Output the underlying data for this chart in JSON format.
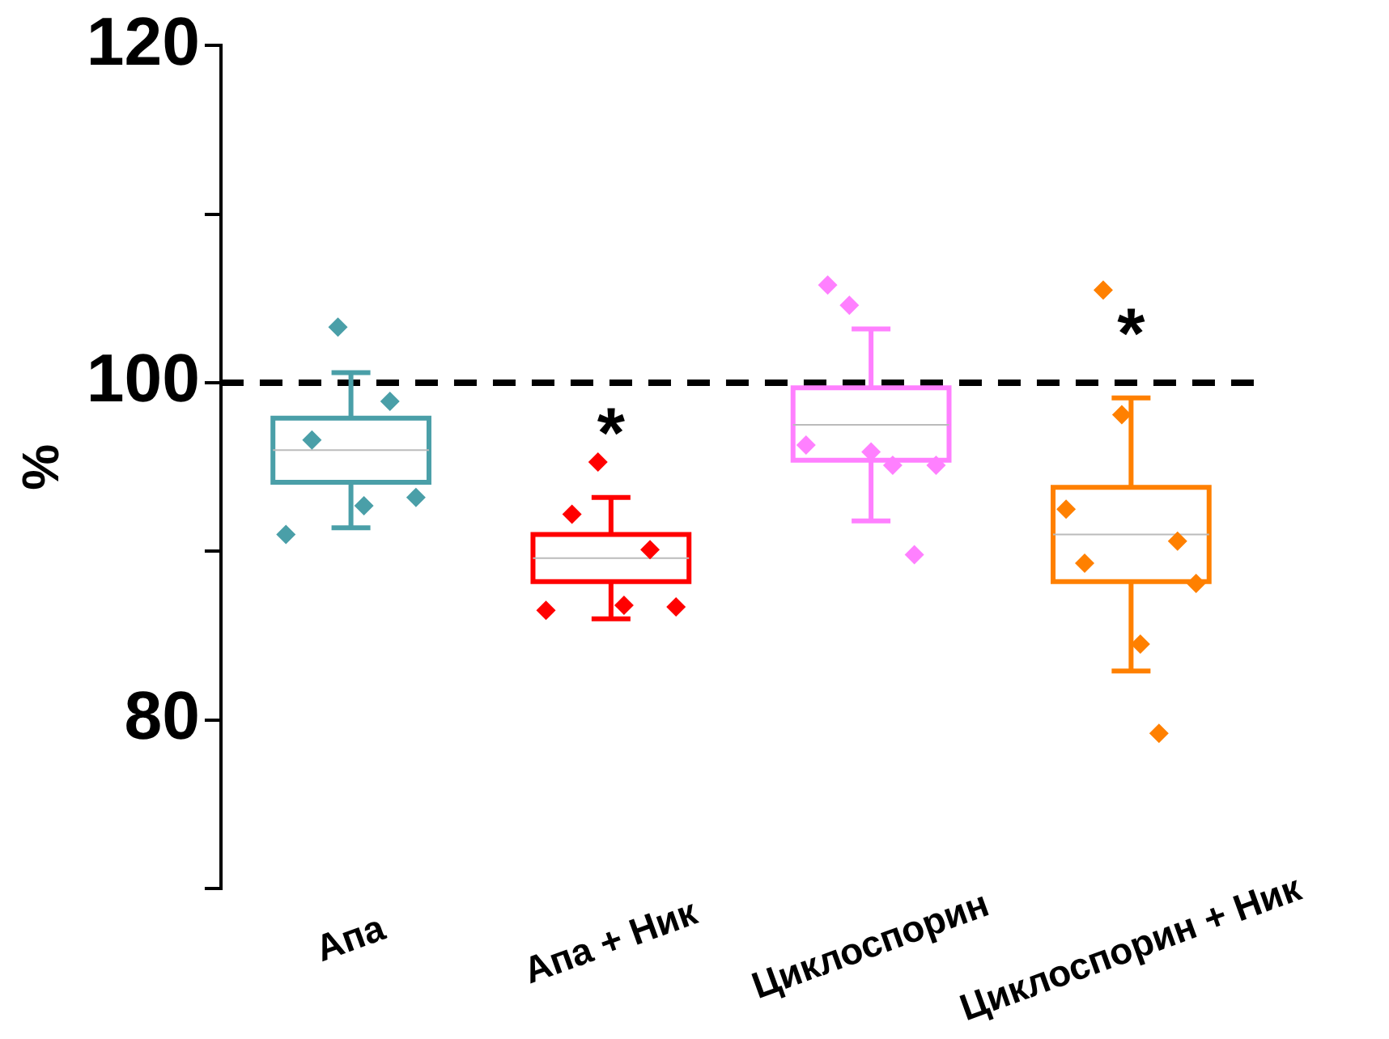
{
  "chart_data": {
    "type": "box",
    "ylabel": "%",
    "categories": [
      "Апа",
      "Апа + Ник",
      "Циклоспорин",
      "Циклоспорин + Ник"
    ],
    "boxes": [
      {
        "low": 91.4,
        "q1": 94.1,
        "median": 96.0,
        "q3": 97.9,
        "high": 100.6
      },
      {
        "low": 86.0,
        "q1": 88.2,
        "median": 89.6,
        "q3": 91.0,
        "high": 93.2
      },
      {
        "low": 91.8,
        "q1": 95.4,
        "median": 97.5,
        "q3": 99.7,
        "high": 103.2
      },
      {
        "low": 82.9,
        "q1": 88.2,
        "median": 91.0,
        "q3": 93.8,
        "high": 99.1
      }
    ],
    "colors": [
      "#4a9fa8",
      "#ff0000",
      "#ff80ff",
      "#ff8000"
    ],
    "series": [
      {
        "type": "scatter",
        "color": "#4a9fa8",
        "x": [
          "Апа",
          "Апа",
          "Апа",
          "Апа",
          "Апа",
          "Апа"
        ],
        "values": [
          91.0,
          96.6,
          103.3,
          92.7,
          98.9,
          93.2
        ]
      },
      {
        "type": "scatter",
        "color": "#ff0000",
        "x": [
          "Апа + Ник",
          "Апа + Ник",
          "Апа + Ник",
          "Апа + Ник",
          "Апа + Ник",
          "Апа + Ник"
        ],
        "values": [
          86.5,
          92.2,
          95.3,
          86.8,
          90.1,
          86.7
        ]
      },
      {
        "type": "scatter",
        "color": "#ff80ff",
        "x": [
          "Циклоспорин",
          "Циклоспорин",
          "Циклоспорин",
          "Циклоспорин",
          "Циклоспорин",
          "Циклоспорин",
          "Циклоспорин"
        ],
        "values": [
          96.3,
          105.8,
          104.6,
          95.9,
          95.1,
          89.8,
          95.1
        ]
      },
      {
        "type": "scatter",
        "color": "#ff8000",
        "x": [
          "Циклоспорин + Ник",
          "Циклоспорин + Ник",
          "Циклоспорин + Ник",
          "Циклоспорин + Ник",
          "Циклоспорин + Ник",
          "Циклоспорин + Ник",
          "Циклоспорин + Ник",
          "Циклоспорин + Ник"
        ],
        "values": [
          92.5,
          89.3,
          105.5,
          98.1,
          84.5,
          79.2,
          90.6,
          88.1
        ]
      }
    ],
    "marker": "diamond",
    "ylim": [
      70,
      120
    ],
    "yticks": [
      {
        "value": 70,
        "label": null
      },
      80,
      {
        "value": 90,
        "label": null
      },
      100,
      {
        "value": 110,
        "label": null
      },
      120
    ],
    "ref_lines": [
      {
        "axis": "y",
        "value": 100,
        "color": "#000000",
        "line_style": "dashed"
      }
    ],
    "annotations": [
      "*",
      "*"
    ],
    "grid": false,
    "legend": false
  }
}
